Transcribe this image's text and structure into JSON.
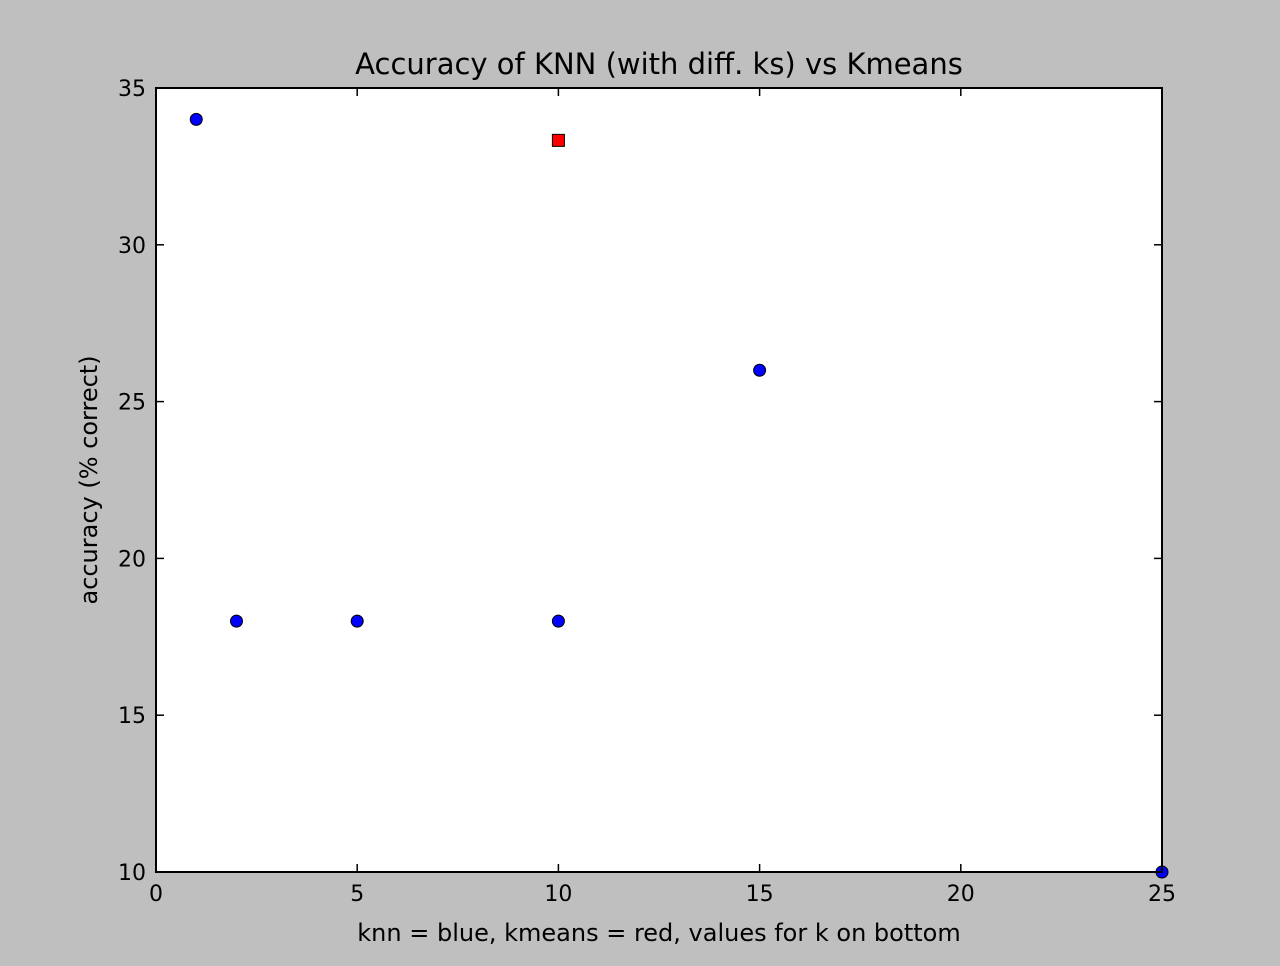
{
  "chart_data": {
    "type": "scatter",
    "title": "Accuracy of KNN (with diff. ks) vs Kmeans",
    "xlabel": "knn = blue, kmeans = red, values for k on bottom",
    "ylabel": "accuracy (% correct)",
    "xlim": [
      0,
      25
    ],
    "ylim": [
      10,
      35
    ],
    "x_ticks": [
      "0",
      "5",
      "10",
      "15",
      "20",
      "25"
    ],
    "y_ticks": [
      "10",
      "15",
      "20",
      "25",
      "30",
      "35"
    ],
    "grid": false,
    "series": [
      {
        "marker": "circle",
        "color": "#0000ff",
        "points": [
          {
            "x": 1,
            "y": 34
          },
          {
            "x": 2,
            "y": 18
          },
          {
            "x": 5,
            "y": 18
          },
          {
            "x": 10,
            "y": 18
          },
          {
            "x": 15,
            "y": 26
          },
          {
            "x": 25,
            "y": 10
          }
        ]
      },
      {
        "marker": "square",
        "color": "#ff0000",
        "points": [
          {
            "x": 10,
            "y": 33.33
          }
        ]
      }
    ],
    "colors": {
      "figure_background": "#bfbfbf",
      "plot_background": "#ffffff"
    }
  }
}
